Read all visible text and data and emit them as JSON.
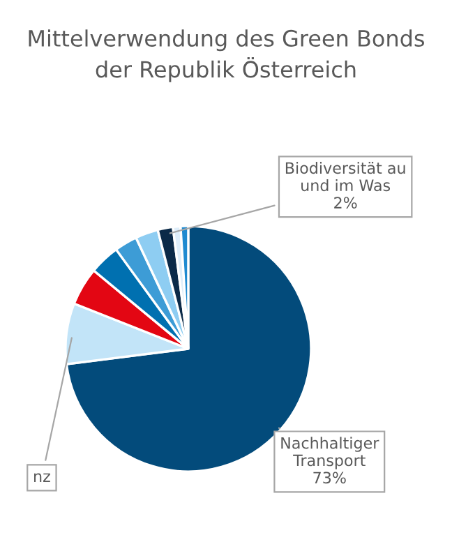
{
  "chart_data": {
    "type": "pie",
    "title": "Mittelverwendung des Green Bonds\nder Republik Österreich",
    "categories": [
      "Nachhaltiger\nTransport",
      "nz",
      null,
      null,
      null,
      null,
      "Biodiversität au\nund im Was",
      null,
      null
    ],
    "values": [
      73,
      8,
      5,
      4,
      3,
      3,
      2,
      1,
      1
    ],
    "value_labels": [
      "73%",
      null,
      null,
      null,
      null,
      null,
      "2%",
      null,
      null
    ],
    "colors": [
      "#034b7b",
      "#c2e4f8",
      "#e30613",
      "#0070b0",
      "#3d9cd6",
      "#8ecdf2",
      "#0b2a48",
      "#dfeefa",
      "#1f8ad0"
    ],
    "legend": false
  }
}
